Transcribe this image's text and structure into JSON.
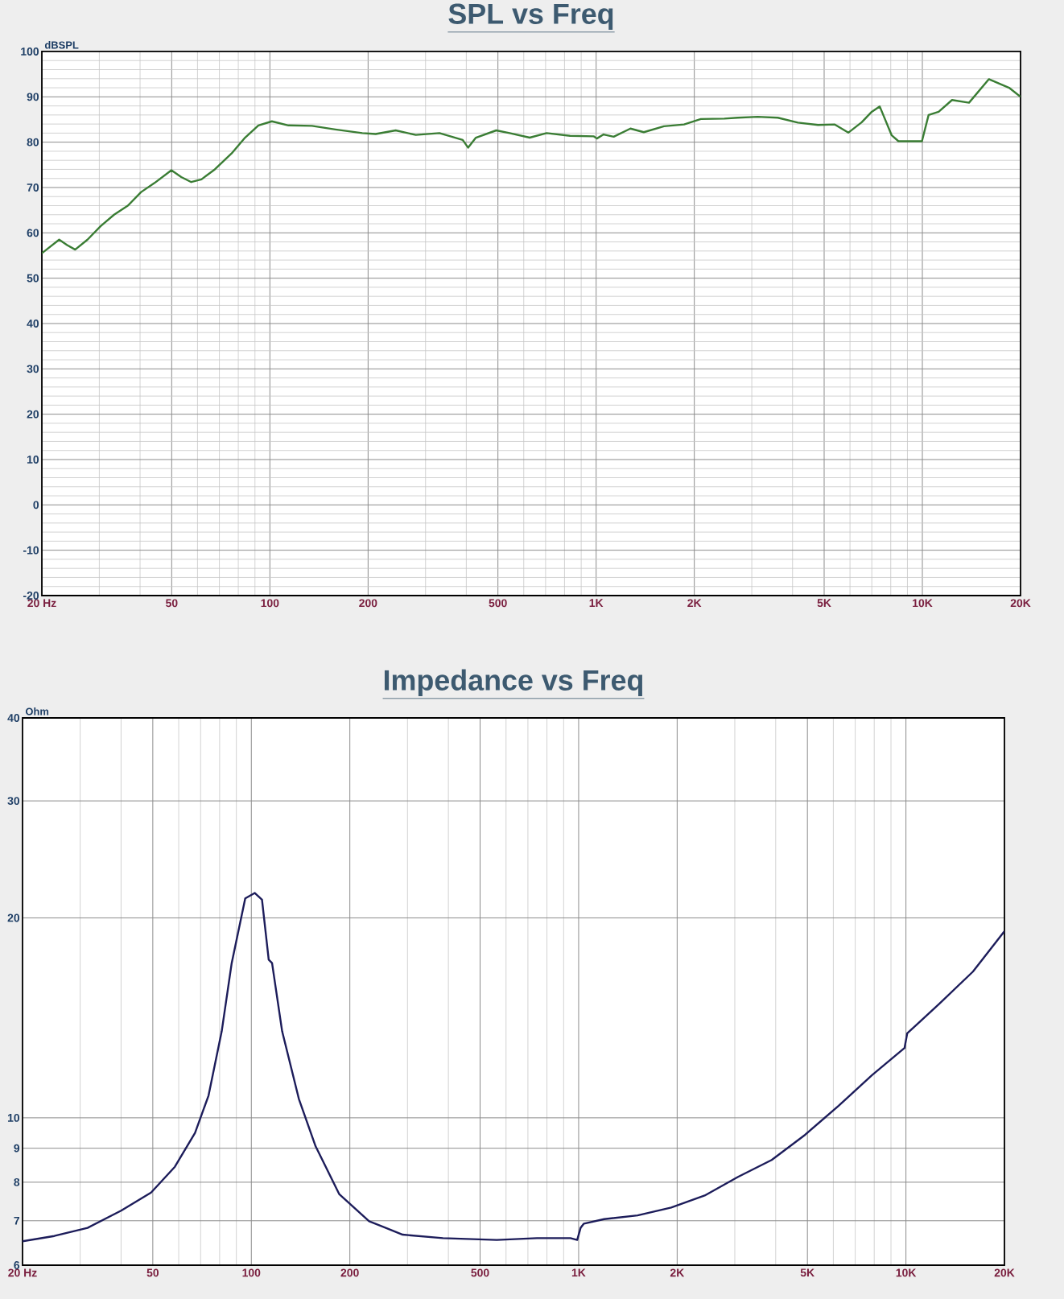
{
  "chart_data": [
    {
      "type": "line",
      "title": "SPL vs Freq",
      "ylabel": "dBSPL",
      "log": "x",
      "grid": true,
      "x": [
        20,
        22.6,
        23.9,
        25.3,
        27.6,
        30.3,
        33.3,
        36.7,
        40.3,
        44.3,
        49.9,
        53.5,
        57.4,
        61.7,
        67.8,
        76.3,
        83.9,
        92.2,
        101.4,
        114,
        134.6,
        158.8,
        192,
        211,
        243,
        280,
        331,
        390,
        405,
        428,
        494,
        543,
        626,
        705,
        832,
        982,
        1005,
        1054,
        1132,
        1274,
        1400,
        1614,
        1860,
        2094,
        2472,
        2716,
        3128,
        3606,
        4156,
        4788,
        5392,
        5930,
        6520,
        6995,
        7400,
        8055,
        8450,
        9970,
        10450,
        11220,
        12330,
        13900,
        16000,
        18450,
        20000
      ],
      "series": [
        {
          "color": "#3a7d34",
          "values": [
            55.5,
            58.5,
            57.3,
            56.3,
            58.5,
            61.5,
            64,
            66,
            69,
            71,
            73.8,
            72.3,
            71.2,
            71.8,
            74,
            77.5,
            81,
            83.7,
            84.6,
            83.7,
            83.6,
            82.8,
            82,
            81.8,
            82.6,
            81.6,
            82,
            80.5,
            78.8,
            81,
            82.6,
            82,
            81,
            82,
            81.4,
            81.3,
            80.8,
            81.7,
            81.2,
            83,
            82.2,
            83.5,
            83.9,
            85.1,
            85.2,
            85.4,
            85.6,
            85.4,
            84.3,
            83.8,
            83.9,
            82.1,
            84.4,
            86.7,
            87.9,
            81.5,
            80.2,
            80.2,
            86,
            86.7,
            89.3,
            88.7,
            93.9,
            92,
            90
          ]
        }
      ],
      "xlim": [
        20,
        20000
      ],
      "ylim": [
        -20,
        100
      ],
      "xticks": [
        {
          "value": 20,
          "label": "20  Hz"
        },
        50,
        100,
        200,
        500,
        {
          "value": 1000,
          "label": "1K"
        },
        {
          "value": 2000,
          "label": "2K"
        },
        {
          "value": 5000,
          "label": "5K"
        },
        {
          "value": 10000,
          "label": "10K"
        },
        {
          "value": 20000,
          "label": "20K"
        }
      ],
      "yticks": [
        -20,
        -10,
        0,
        10,
        20,
        30,
        40,
        50,
        60,
        70,
        80,
        90,
        100
      ]
    },
    {
      "type": "line",
      "title": "Impedance vs Freq",
      "ylabel": "Ohm",
      "log": "xy",
      "grid": true,
      "x": [
        20,
        25,
        31.6,
        40,
        49.4,
        58.4,
        67.3,
        74,
        81.2,
        87.1,
        95.8,
        102.5,
        107.8,
        113,
        115.7,
        124.2,
        139.7,
        157.2,
        185.5,
        229,
        290,
        385,
        562,
        746,
        944,
        990,
        1014,
        1038,
        1197,
        1514,
        1918,
        2427,
        3070,
        3890,
        4920,
        6230,
        7890,
        9900,
        10090,
        12650,
        16020,
        20000
      ],
      "series": [
        {
          "color": "#1c1c5a",
          "values": [
            6.52,
            6.64,
            6.83,
            7.25,
            7.72,
            8.44,
            9.49,
            10.8,
            13.5,
            17.1,
            21.4,
            21.8,
            21.3,
            17.3,
            17.1,
            13.5,
            10.68,
            9.06,
            7.68,
            6.99,
            6.67,
            6.59,
            6.55,
            6.59,
            6.59,
            6.55,
            6.83,
            6.93,
            7.04,
            7.13,
            7.33,
            7.64,
            8.15,
            8.64,
            9.43,
            10.43,
            11.6,
            12.74,
            13.4,
            14.85,
            16.6,
            19.1
          ]
        }
      ],
      "xlim": [
        20,
        20000
      ],
      "ylim": [
        6,
        40
      ],
      "xticks": [
        {
          "value": 20,
          "label": "20  Hz"
        },
        50,
        100,
        200,
        500,
        {
          "value": 1000,
          "label": "1K"
        },
        {
          "value": 2000,
          "label": "2K"
        },
        {
          "value": 5000,
          "label": "5K"
        },
        {
          "value": 10000,
          "label": "10K"
        },
        {
          "value": 20000,
          "label": "20K"
        }
      ],
      "yticks": [
        6,
        7,
        8,
        9,
        10,
        20,
        30,
        40
      ]
    }
  ]
}
